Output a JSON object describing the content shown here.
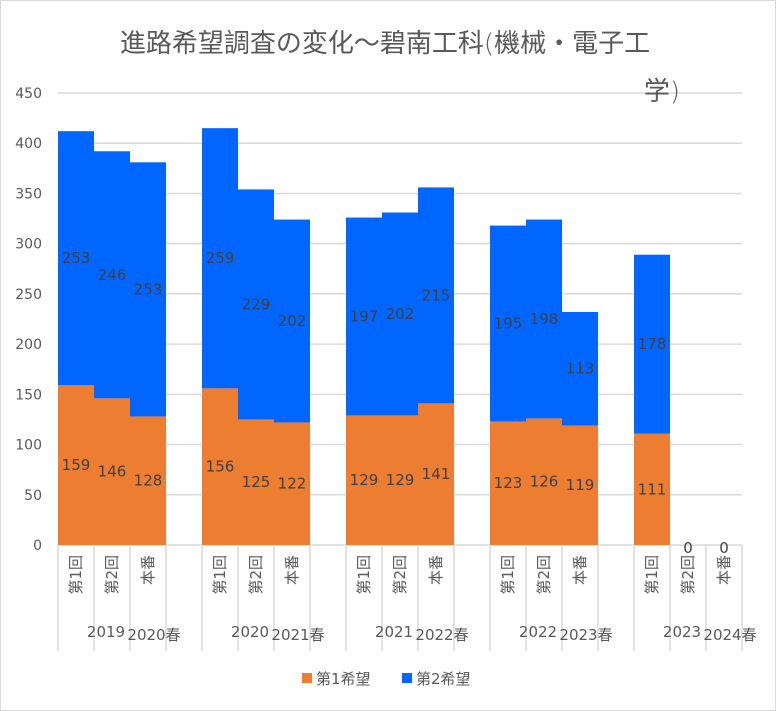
{
  "chart_data": {
    "type": "bar",
    "stacked": true,
    "title": "進路希望調査の変化～碧南工科(機械・電子工学)",
    "title_lines": [
      "進路希望調査の変化～碧南工科(機械・電子工",
      "学)"
    ],
    "xlabel": "",
    "ylabel": "",
    "ylim": [
      0,
      450
    ],
    "yticks": [
      0,
      50,
      100,
      150,
      200,
      250,
      300,
      350,
      400,
      450
    ],
    "grid": true,
    "legend_position": "bottom",
    "groups": [
      {
        "label_a": "2019",
        "label_b": "2020春",
        "categories": [
          "第1回",
          "第2回",
          "本番"
        ]
      },
      {
        "label_a": "2020",
        "label_b": "2021春",
        "categories": [
          "第1回",
          "第2回",
          "本番"
        ]
      },
      {
        "label_a": "2021",
        "label_b": "2022春",
        "categories": [
          "第1回",
          "第2回",
          "本番"
        ]
      },
      {
        "label_a": "2022",
        "label_b": "2023春",
        "categories": [
          "第1回",
          "第2回",
          "本番"
        ]
      },
      {
        "label_a": "2023",
        "label_b": "2024春",
        "categories": [
          "第1回",
          "第2回",
          "本番"
        ]
      }
    ],
    "series": [
      {
        "name": "第1希望",
        "color": "#ED7D31",
        "values": [
          [
            159,
            146,
            128
          ],
          [
            156,
            125,
            122
          ],
          [
            129,
            129,
            141
          ],
          [
            123,
            126,
            119
          ],
          [
            111,
            0,
            0
          ]
        ]
      },
      {
        "name": "第2希望",
        "color": "#0066FF",
        "values": [
          [
            253,
            246,
            253
          ],
          [
            259,
            229,
            202
          ],
          [
            197,
            202,
            215
          ],
          [
            195,
            198,
            113
          ],
          [
            178,
            null,
            null
          ]
        ]
      }
    ]
  }
}
